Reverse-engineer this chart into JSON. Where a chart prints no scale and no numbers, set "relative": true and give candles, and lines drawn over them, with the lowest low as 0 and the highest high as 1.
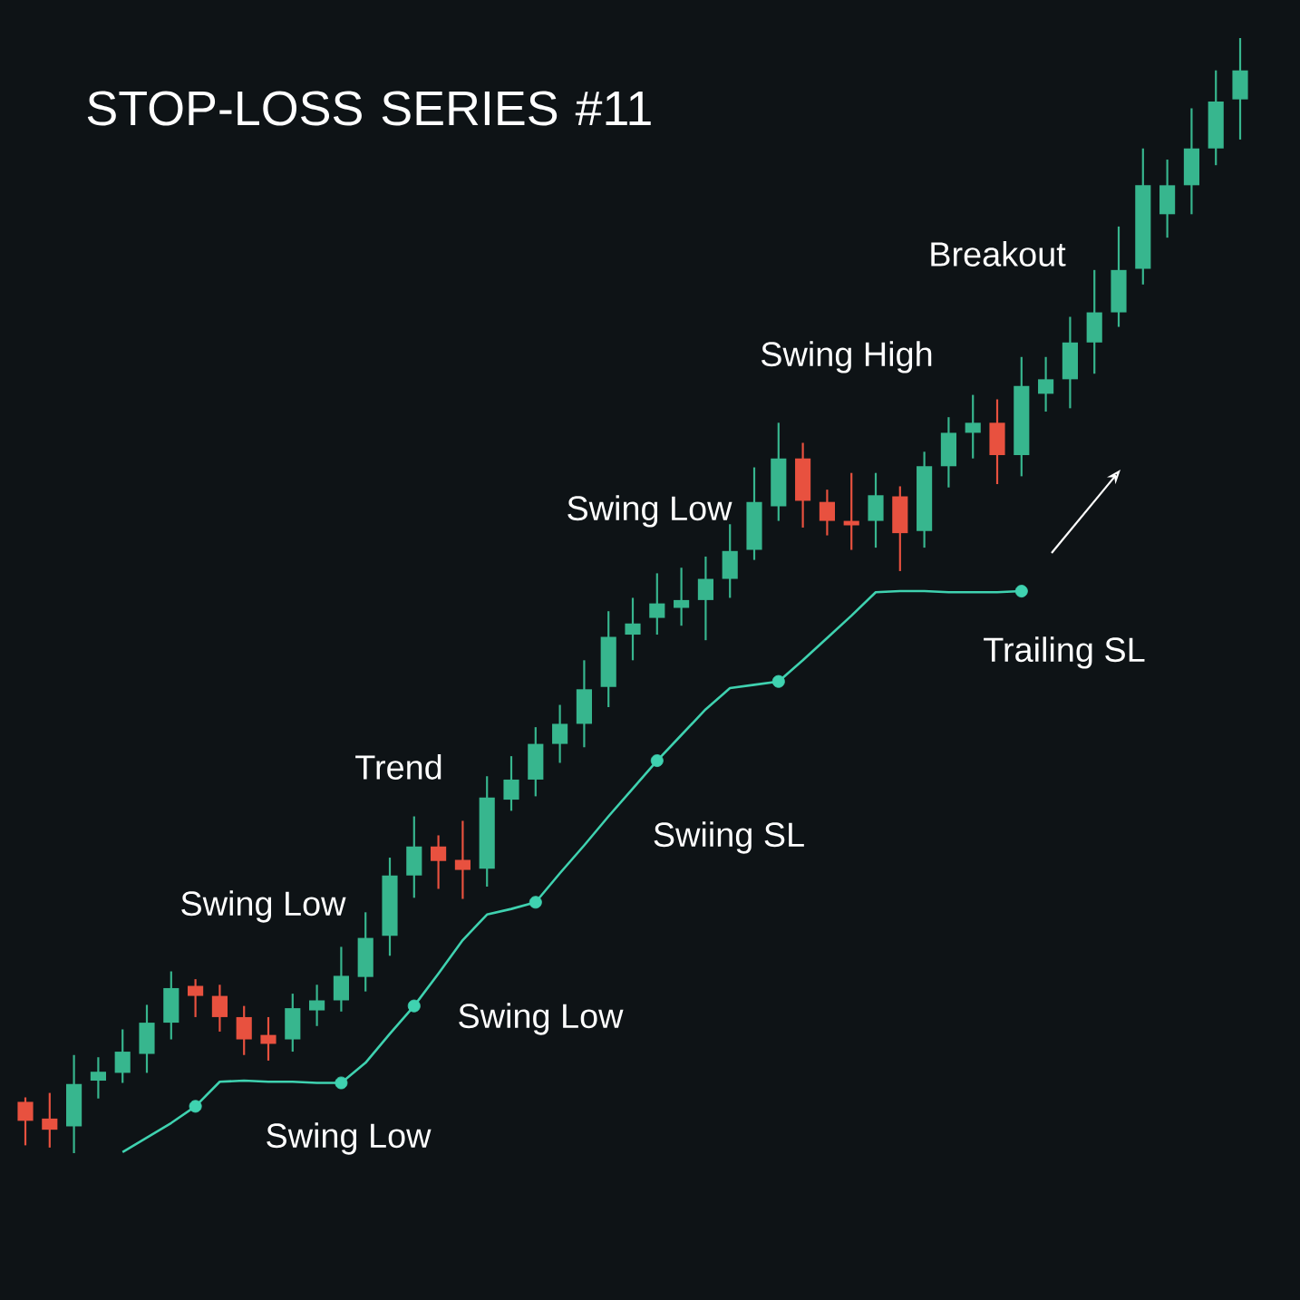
{
  "chart_data": {
    "type": "candlestick",
    "title": "STOP-LOSS SERIES #11",
    "relative": true,
    "categories": [
      null,
      null,
      null,
      null,
      null,
      null,
      null,
      null,
      null,
      null,
      null,
      null,
      null,
      null,
      null,
      null,
      null,
      null,
      null,
      null,
      null,
      null,
      null,
      null,
      null,
      null,
      null,
      null,
      null,
      null,
      null,
      null,
      null,
      null,
      null,
      null,
      null,
      null,
      null,
      null,
      null,
      null,
      null,
      null,
      null,
      null,
      null,
      null,
      null,
      null,
      null
    ],
    "ohlc": [
      [
        0.046,
        0.05,
        0.007,
        0.029
      ],
      [
        0.031,
        0.054,
        0.005,
        0.021
      ],
      [
        0.024,
        0.088,
        0.0,
        0.062
      ],
      [
        0.065,
        0.086,
        0.049,
        0.073
      ],
      [
        0.072,
        0.111,
        0.063,
        0.091
      ],
      [
        0.089,
        0.133,
        0.072,
        0.117
      ],
      [
        0.117,
        0.163,
        0.102,
        0.148
      ],
      [
        0.15,
        0.156,
        0.122,
        0.141
      ],
      [
        0.141,
        0.151,
        0.109,
        0.122
      ],
      [
        0.122,
        0.132,
        0.088,
        0.102
      ],
      [
        0.106,
        0.122,
        0.083,
        0.098
      ],
      [
        0.102,
        0.143,
        0.091,
        0.13
      ],
      [
        0.128,
        0.151,
        0.114,
        0.137
      ],
      [
        0.137,
        0.185,
        0.127,
        0.159
      ],
      [
        0.158,
        0.216,
        0.145,
        0.193
      ],
      [
        0.195,
        0.265,
        0.177,
        0.249
      ],
      [
        0.249,
        0.302,
        0.229,
        0.275
      ],
      [
        0.275,
        0.285,
        0.237,
        0.262
      ],
      [
        0.263,
        0.298,
        0.228,
        0.254
      ],
      [
        0.255,
        0.338,
        0.239,
        0.319
      ],
      [
        0.317,
        0.356,
        0.307,
        0.335
      ],
      [
        0.335,
        0.382,
        0.32,
        0.367
      ],
      [
        0.367,
        0.402,
        0.35,
        0.385
      ],
      [
        0.385,
        0.442,
        0.364,
        0.416
      ],
      [
        0.418,
        0.486,
        0.4,
        0.463
      ],
      [
        0.465,
        0.498,
        0.442,
        0.475
      ],
      [
        0.48,
        0.52,
        0.465,
        0.493
      ],
      [
        0.489,
        0.525,
        0.473,
        0.496
      ],
      [
        0.496,
        0.535,
        0.46,
        0.515
      ],
      [
        0.515,
        0.564,
        0.498,
        0.54
      ],
      [
        0.541,
        0.615,
        0.532,
        0.584
      ],
      [
        0.58,
        0.655,
        0.567,
        0.623
      ],
      [
        0.623,
        0.637,
        0.561,
        0.585
      ],
      [
        0.584,
        0.595,
        0.554,
        0.567
      ],
      [
        0.567,
        0.61,
        0.541,
        0.563
      ],
      [
        0.567,
        0.61,
        0.543,
        0.59
      ],
      [
        0.589,
        0.598,
        0.522,
        0.556
      ],
      [
        0.558,
        0.629,
        0.543,
        0.616
      ],
      [
        0.616,
        0.66,
        0.597,
        0.646
      ],
      [
        0.646,
        0.68,
        0.623,
        0.655
      ],
      [
        0.655,
        0.676,
        0.6,
        0.626
      ],
      [
        0.626,
        0.714,
        0.607,
        0.688
      ],
      [
        0.681,
        0.714,
        0.665,
        0.694
      ],
      [
        0.694,
        0.75,
        0.668,
        0.727
      ],
      [
        0.727,
        0.792,
        0.699,
        0.754
      ],
      [
        0.754,
        0.831,
        0.741,
        0.792
      ],
      [
        0.793,
        0.901,
        0.779,
        0.868
      ],
      [
        0.842,
        0.891,
        0.821,
        0.868
      ],
      [
        0.868,
        0.937,
        0.842,
        0.901
      ],
      [
        0.901,
        0.971,
        0.886,
        0.943
      ],
      [
        0.945,
        1.0,
        0.909,
        0.971
      ]
    ],
    "colors": [
      "#e8513f",
      "#e8513f",
      "#37b68e",
      "#37b68e",
      "#37b68e",
      "#37b68e",
      "#37b68e",
      "#e8513f",
      "#e8513f",
      "#e8513f",
      "#e8513f",
      "#37b68e",
      "#37b68e",
      "#37b68e",
      "#37b68e",
      "#37b68e",
      "#37b68e",
      "#e8513f",
      "#e8513f",
      "#37b68e",
      "#37b68e",
      "#37b68e",
      "#37b68e",
      "#37b68e",
      "#37b68e",
      "#37b68e",
      "#37b68e",
      "#37b68e",
      "#37b68e",
      "#37b68e",
      "#37b68e",
      "#37b68e",
      "#e8513f",
      "#e8513f",
      "#e8513f",
      "#37b68e",
      "#e8513f",
      "#37b68e",
      "#37b68e",
      "#37b68e",
      "#e8513f",
      "#37b68e",
      "#37b68e",
      "#37b68e",
      "#37b68e",
      "#37b68e",
      "#37b68e",
      "#37b68e",
      "#37b68e",
      "#37b68e",
      "#37b68e"
    ],
    "series": [
      {
        "type": "line",
        "color": "#3fd2b0",
        "values": [
          null,
          null,
          null,
          null,
          0.001,
          0.014,
          0.027,
          0.042,
          0.064,
          0.065,
          0.064,
          0.064,
          0.063,
          0.063,
          0.081,
          0.107,
          0.132,
          0.161,
          0.191,
          0.214,
          0.219,
          0.225,
          0.251,
          0.276,
          0.302,
          0.327,
          0.352,
          0.375,
          0.398,
          0.417,
          0.42,
          0.423,
          0.442,
          0.462,
          0.482,
          0.503,
          0.504,
          0.504,
          0.503,
          0.503,
          0.503,
          0.504,
          null,
          null,
          null,
          null,
          null,
          null,
          null,
          null,
          null
        ]
      },
      {
        "type": "scatter",
        "color": "#3fd2b0",
        "values": [
          null,
          null,
          null,
          null,
          null,
          null,
          null,
          0.042,
          null,
          null,
          null,
          null,
          null,
          0.063,
          null,
          null,
          0.132,
          null,
          null,
          null,
          null,
          0.225,
          null,
          null,
          null,
          null,
          0.352,
          null,
          null,
          null,
          null,
          0.423,
          null,
          null,
          null,
          null,
          null,
          null,
          null,
          null,
          null,
          0.504,
          null,
          null,
          null,
          null,
          null,
          null,
          null,
          null,
          null
        ]
      }
    ],
    "annotations": [
      "Breakout",
      "Swing High",
      "Swing Low",
      "Trailing SL",
      "Trend",
      "Swiing SL",
      "Swing Low",
      "Swing Low",
      "Swing Low"
    ]
  }
}
